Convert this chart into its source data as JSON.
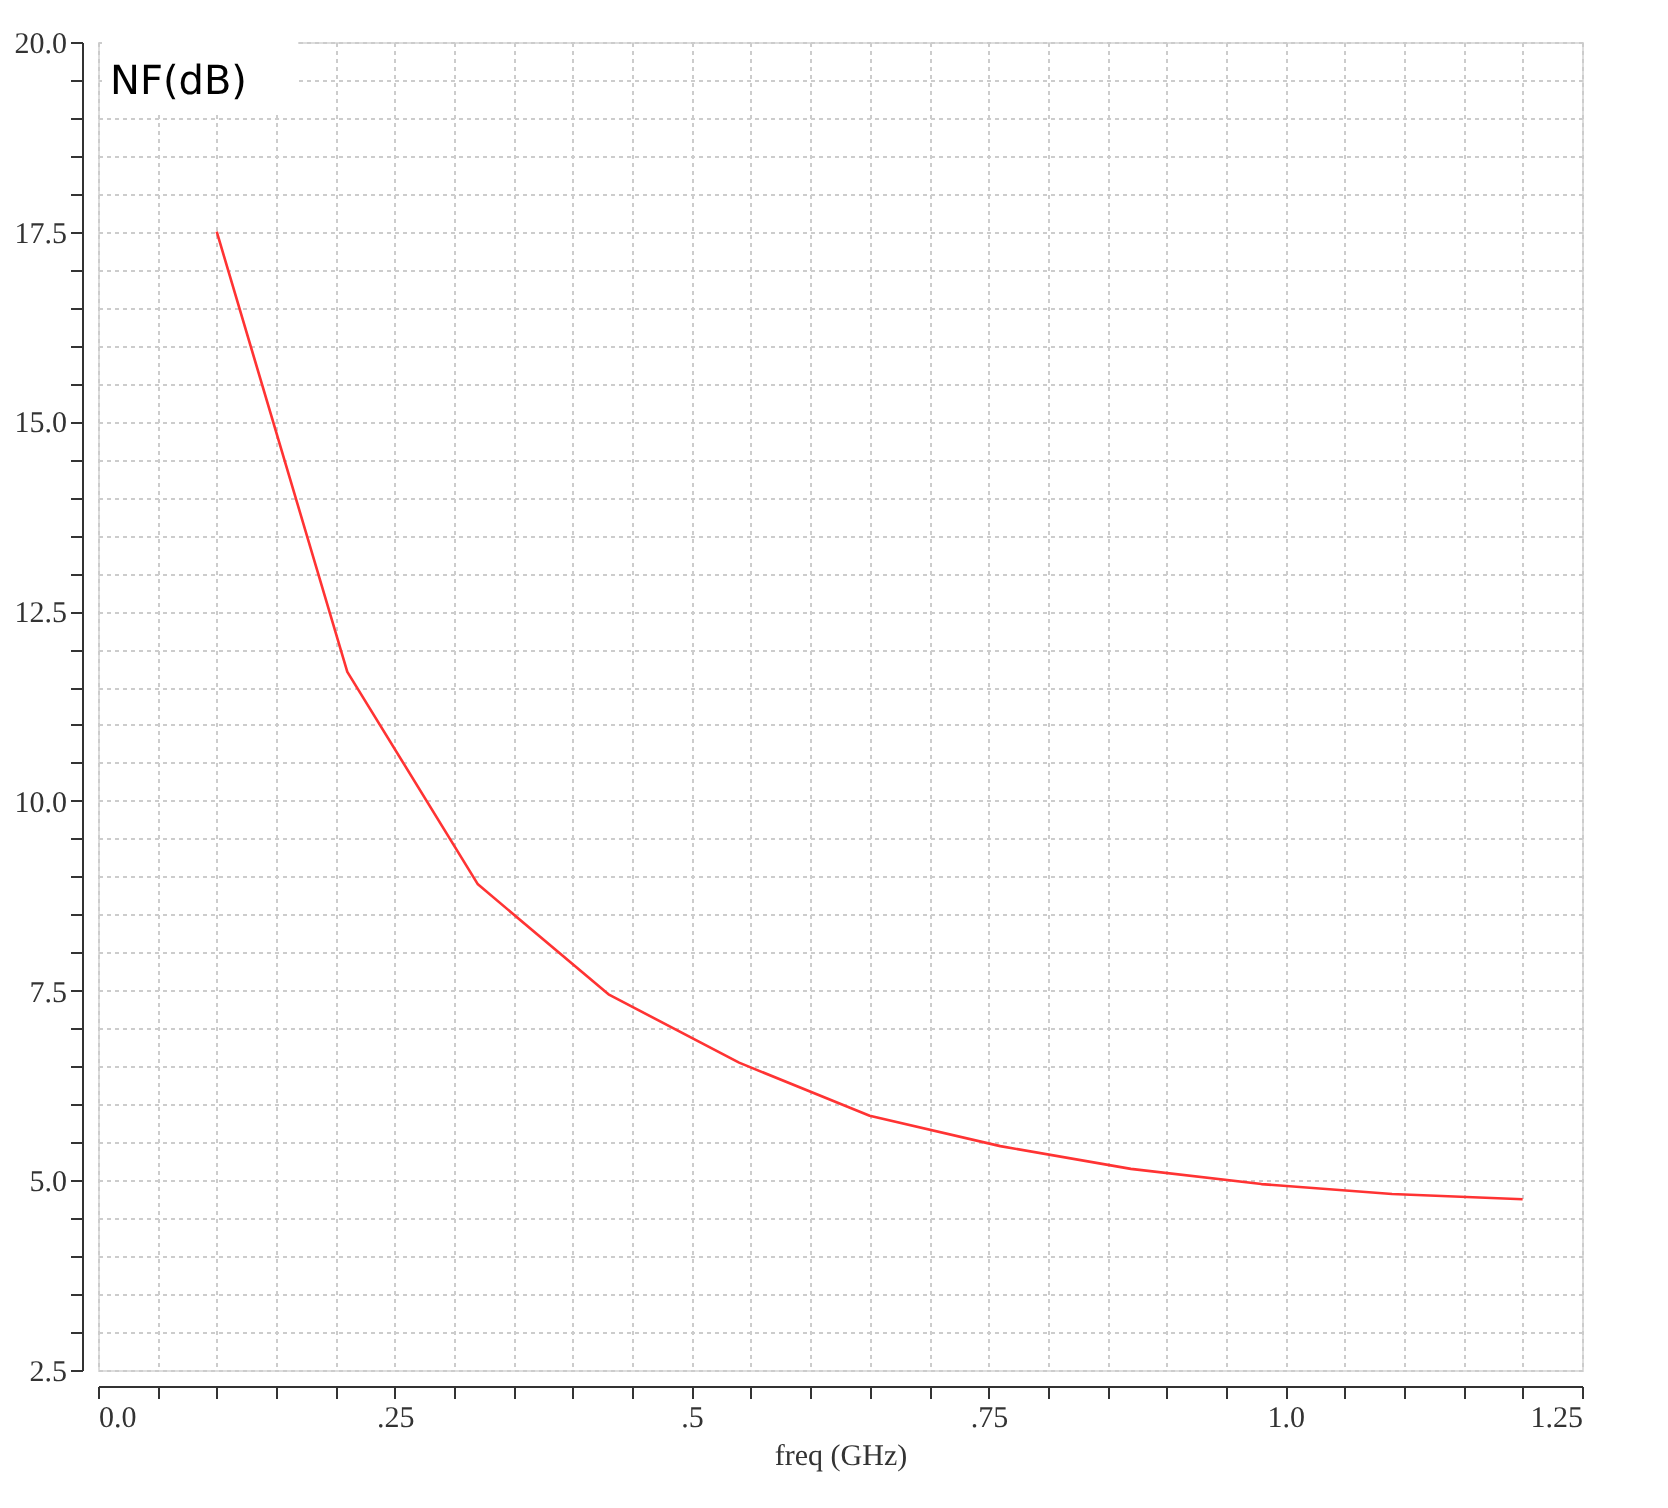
{
  "chart_data": {
    "type": "line",
    "ylabel": "NF(dB)",
    "xlabel": "freq (GHz)",
    "x": [
      0.1,
      0.21,
      0.32,
      0.43,
      0.54,
      0.65,
      0.76,
      0.87,
      0.98,
      1.09,
      1.2
    ],
    "series": [
      {
        "color": "#ff3333",
        "values": [
          17.5,
          11.7,
          8.9,
          7.45,
          6.55,
          5.85,
          5.45,
          5.15,
          4.95,
          4.82,
          4.75
        ]
      }
    ],
    "xlim": [
      0,
      1.25
    ],
    "ylim": [
      2.5,
      20
    ],
    "xticks": [
      {
        "value": 0,
        "label": "0.0"
      },
      {
        "value": 0.05,
        "label": null
      },
      {
        "value": 0.1,
        "label": null
      },
      {
        "value": 0.15,
        "label": null
      },
      {
        "value": 0.2,
        "label": null
      },
      {
        "value": 0.25,
        "label": ".25"
      },
      {
        "value": 0.3,
        "label": null
      },
      {
        "value": 0.35,
        "label": null
      },
      {
        "value": 0.4,
        "label": null
      },
      {
        "value": 0.45,
        "label": null
      },
      {
        "value": 0.5,
        "label": ".5"
      },
      {
        "value": 0.55,
        "label": null
      },
      {
        "value": 0.6,
        "label": null
      },
      {
        "value": 0.65,
        "label": null
      },
      {
        "value": 0.7,
        "label": null
      },
      {
        "value": 0.75,
        "label": ".75"
      },
      {
        "value": 0.8,
        "label": null
      },
      {
        "value": 0.85,
        "label": null
      },
      {
        "value": 0.9,
        "label": null
      },
      {
        "value": 0.95,
        "label": null
      },
      {
        "value": 1.0,
        "label": "1.0"
      },
      {
        "value": 1.05,
        "label": null
      },
      {
        "value": 1.1,
        "label": null
      },
      {
        "value": 1.15,
        "label": null
      },
      {
        "value": 1.2,
        "label": null
      },
      1.25
    ],
    "yticks": [
      2.5,
      {
        "value": 3,
        "label": null
      },
      {
        "value": 3.5,
        "label": null
      },
      {
        "value": 4,
        "label": null
      },
      {
        "value": 4.5,
        "label": null
      },
      {
        "value": 5,
        "label": "5.0"
      },
      {
        "value": 5.5,
        "label": null
      },
      {
        "value": 6,
        "label": null
      },
      {
        "value": 6.5,
        "label": null
      },
      {
        "value": 7,
        "label": null
      },
      7.5,
      {
        "value": 8,
        "label": null
      },
      {
        "value": 8.5,
        "label": null
      },
      {
        "value": 9,
        "label": null
      },
      {
        "value": 9.5,
        "label": null
      },
      {
        "value": 10,
        "label": "10.0"
      },
      {
        "value": 10.5,
        "label": null
      },
      {
        "value": 11,
        "label": null
      },
      {
        "value": 11.5,
        "label": null
      },
      {
        "value": 12,
        "label": null
      },
      12.5,
      {
        "value": 13,
        "label": null
      },
      {
        "value": 13.5,
        "label": null
      },
      {
        "value": 14,
        "label": null
      },
      {
        "value": 14.5,
        "label": null
      },
      {
        "value": 15,
        "label": "15.0"
      },
      {
        "value": 15.5,
        "label": null
      },
      {
        "value": 16,
        "label": null
      },
      {
        "value": 16.5,
        "label": null
      },
      {
        "value": 17,
        "label": null
      },
      17.5,
      {
        "value": 18,
        "label": null
      },
      {
        "value": 18.5,
        "label": null
      },
      {
        "value": 19,
        "label": null
      },
      {
        "value": 19.5,
        "label": null
      },
      {
        "value": 20,
        "label": "20.0"
      }
    ],
    "grid": true,
    "marker": "none",
    "line_style": "solid"
  }
}
